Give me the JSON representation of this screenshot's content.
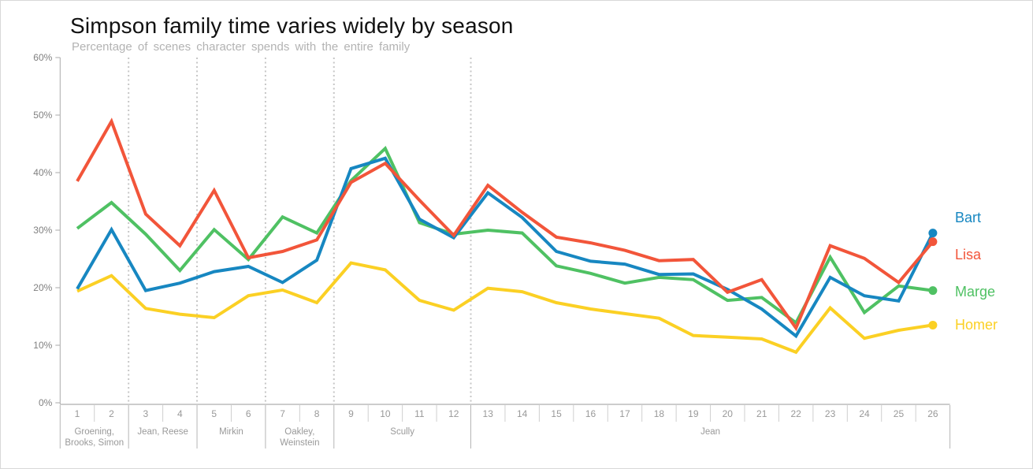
{
  "header": {
    "title": "Simpson family time varies widely by season",
    "subtitle": "Percentage of scenes character spends with the entire family"
  },
  "chart_data": {
    "type": "line",
    "title": "Simpson family time varies widely by season",
    "subtitle": "Percentage of scenes character spends with the entire family",
    "xlabel": "",
    "ylabel": "",
    "ylim": [
      0,
      60
    ],
    "y_ticks": [
      "0%",
      "10%",
      "20%",
      "30%",
      "40%",
      "50%",
      "60%"
    ],
    "grid": "off",
    "legend_position": "right-direct-labels",
    "categories": [
      "1",
      "2",
      "3",
      "4",
      "5",
      "6",
      "7",
      "8",
      "9",
      "10",
      "11",
      "12",
      "13",
      "14",
      "15",
      "16",
      "17",
      "18",
      "19",
      "20",
      "21",
      "22",
      "23",
      "24",
      "25",
      "26"
    ],
    "series": [
      {
        "name": "Bart",
        "color": "#1787c1",
        "label_dy": -20,
        "values": [
          19.8,
          30.1,
          19.5,
          20.8,
          22.8,
          23.7,
          20.9,
          24.8,
          40.7,
          42.5,
          31.9,
          28.7,
          36.5,
          32.2,
          26.3,
          24.6,
          24.1,
          22.3,
          22.4,
          19.7,
          16.3,
          11.6,
          21.8,
          18.6,
          17.7,
          29.5
        ]
      },
      {
        "name": "Lisa",
        "color": "#f2553a",
        "label_dy": 16,
        "values": [
          38.5,
          48.9,
          32.8,
          27.3,
          36.9,
          25.2,
          26.3,
          28.3,
          38.3,
          41.6,
          35.2,
          29.1,
          37.8,
          33.1,
          28.8,
          27.8,
          26.5,
          24.7,
          24.9,
          19.2,
          21.4,
          13.0,
          27.3,
          25.1,
          20.9,
          28.0
        ]
      },
      {
        "name": "Marge",
        "color": "#4fc163",
        "label_dy": 1,
        "values": [
          30.3,
          34.8,
          29.3,
          23.0,
          30.1,
          24.9,
          32.3,
          29.5,
          38.6,
          44.2,
          31.3,
          29.3,
          30.0,
          29.5,
          23.8,
          22.5,
          20.8,
          21.8,
          21.4,
          17.8,
          18.3,
          13.9,
          25.3,
          15.7,
          20.3,
          19.5
        ]
      },
      {
        "name": "Homer",
        "color": "#fbd024",
        "label_dy": 0,
        "values": [
          19.4,
          22.1,
          16.4,
          15.4,
          14.8,
          18.6,
          19.6,
          17.4,
          24.3,
          23.1,
          17.8,
          16.1,
          19.9,
          19.3,
          17.4,
          16.3,
          15.5,
          14.7,
          11.7,
          11.4,
          11.1,
          8.8,
          16.5,
          11.2,
          12.6,
          13.5
        ]
      }
    ],
    "showrunner_groups": [
      {
        "label": "Groening, Brooks, Simon",
        "label_lines": [
          "Groening,",
          "Brooks, Simon"
        ],
        "seasons": [
          1,
          2
        ]
      },
      {
        "label": "Jean, Reese",
        "label_lines": [
          "Jean, Reese"
        ],
        "seasons": [
          3,
          4
        ]
      },
      {
        "label": "Mirkin",
        "label_lines": [
          "Mirkin"
        ],
        "seasons": [
          5,
          6
        ]
      },
      {
        "label": "Oakley, Weinstein",
        "label_lines": [
          "Oakley,",
          "Weinstein"
        ],
        "seasons": [
          7,
          8
        ]
      },
      {
        "label": "Scully",
        "label_lines": [
          "Scully"
        ],
        "seasons": [
          9,
          12
        ]
      },
      {
        "label": "Jean",
        "label_lines": [
          "Jean"
        ],
        "seasons": [
          13,
          26
        ]
      }
    ]
  }
}
